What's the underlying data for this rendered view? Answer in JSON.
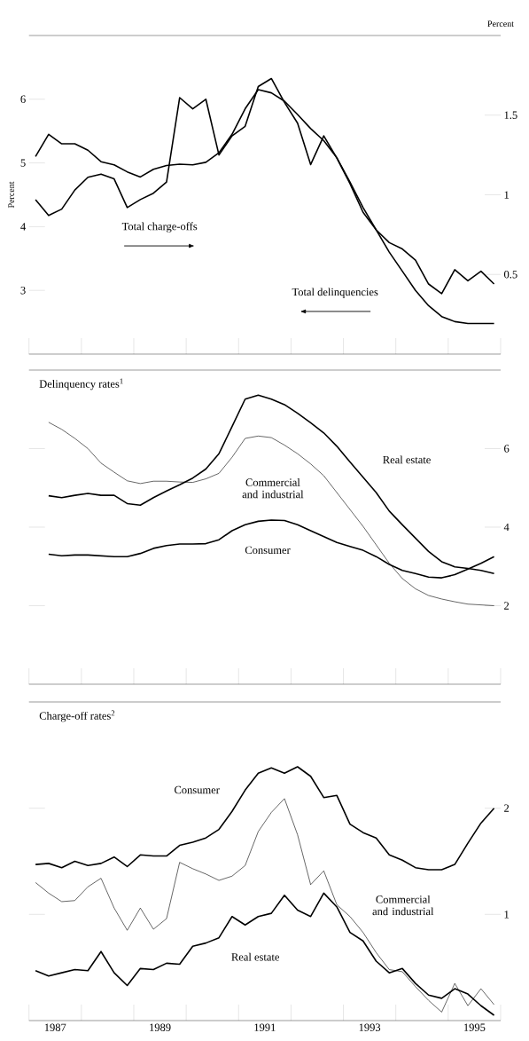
{
  "chart_data": [
    {
      "type": "line",
      "ylabel": "Percent",
      "y2label": "Percent",
      "categories": [
        null,
        null,
        null,
        null,
        null,
        null,
        null,
        null,
        null,
        null,
        null,
        null,
        null,
        null,
        null,
        null,
        null,
        null,
        null,
        null,
        null,
        null,
        null,
        null,
        null,
        null,
        null,
        null,
        null,
        null,
        null,
        null,
        null,
        null,
        null,
        null
      ],
      "ylim": [
        2,
        7
      ],
      "yticks": [
        3,
        4,
        5,
        6
      ],
      "y2lim": [
        0,
        2
      ],
      "y2ticks": [
        0.5,
        1,
        1.5
      ],
      "series": [
        {
          "name": "Total delinquencies",
          "color": "#000000",
          "values": [
            5.1,
            5.45,
            5.3,
            5.3,
            5.2,
            5.02,
            4.97,
            4.86,
            4.78,
            4.9,
            4.96,
            4.98,
            4.97,
            5.01,
            5.16,
            5.45,
            5.85,
            6.15,
            6.1,
            5.97,
            5.76,
            5.54,
            5.35,
            5.08,
            4.7,
            4.3,
            3.95,
            3.6,
            3.3,
            3.0,
            2.76,
            2.59,
            2.51,
            2.48,
            2.48,
            2.48
          ]
        },
        {
          "name": "Total charge-offs",
          "color": "#000000",
          "axis": "y2",
          "values": [
            0.97,
            0.87,
            0.91,
            1.03,
            1.11,
            1.13,
            1.1,
            0.92,
            0.97,
            1.01,
            1.08,
            1.61,
            1.54,
            1.6,
            1.25,
            1.37,
            1.43,
            1.68,
            1.73,
            1.58,
            1.45,
            1.19,
            1.37,
            1.23,
            1.07,
            0.89,
            0.78,
            0.7,
            0.66,
            0.59,
            0.44,
            0.38,
            0.53,
            0.46,
            0.52,
            0.44
          ]
        }
      ]
    },
    {
      "type": "line",
      "title": "Delinquency rates$^{1}$",
      "categories": [
        null,
        null,
        null,
        null,
        null,
        null,
        null,
        null,
        null,
        null,
        null,
        null,
        null,
        null,
        null,
        null,
        null,
        null,
        null,
        null,
        null,
        null,
        null,
        null,
        null,
        null,
        null,
        null,
        null,
        null,
        null,
        null,
        null,
        null,
        null,
        null
      ],
      "ylim": [
        0,
        8
      ],
      "yticks": [
        2,
        4,
        6
      ],
      "series": [
        {
          "name": "Real estate",
          "color": "#000000",
          "values": [
            null,
            4.8,
            4.75,
            4.81,
            4.86,
            4.81,
            4.81,
            4.6,
            4.56,
            4.75,
            4.92,
            5.08,
            5.25,
            5.48,
            5.87,
            6.56,
            7.26,
            7.36,
            7.26,
            7.12,
            6.9,
            6.66,
            6.4,
            6.06,
            5.66,
            5.27,
            4.88,
            4.41,
            4.06,
            3.72,
            3.38,
            3.12,
            2.99,
            2.95,
            2.9,
            2.82
          ]
        },
        {
          "name": "Commercial and industrial",
          "color": "#000000",
          "values": [
            null,
            6.67,
            6.49,
            6.26,
            6.0,
            5.63,
            5.4,
            5.18,
            5.11,
            5.17,
            5.17,
            5.15,
            5.14,
            5.23,
            5.37,
            5.78,
            6.26,
            6.32,
            6.28,
            6.09,
            5.87,
            5.61,
            5.31,
            4.88,
            4.45,
            4.02,
            3.55,
            3.08,
            2.69,
            2.43,
            2.26,
            2.17,
            2.1,
            2.04,
            2.02,
            2.0
          ]
        },
        {
          "name": "Consumer",
          "color": "#000000",
          "values": [
            null,
            3.31,
            3.27,
            3.29,
            3.29,
            3.27,
            3.25,
            3.25,
            3.33,
            3.46,
            3.53,
            3.57,
            3.57,
            3.58,
            3.68,
            3.91,
            4.06,
            4.15,
            4.18,
            4.17,
            4.06,
            3.91,
            3.76,
            3.61,
            3.51,
            3.41,
            3.25,
            3.05,
            2.9,
            2.82,
            2.73,
            2.71,
            2.79,
            2.93,
            3.08,
            3.25
          ]
        }
      ]
    },
    {
      "type": "line",
      "title": "Charge-off rates$^{2}$",
      "x": [
        1987.125,
        1987.375,
        1987.625,
        1987.875,
        1988.125,
        1988.375,
        1988.625,
        1988.875,
        1989.125,
        1989.375,
        1989.625,
        1989.875,
        1990.125,
        1990.375,
        1990.625,
        1990.875,
        1991.125,
        1991.375,
        1991.625,
        1991.875,
        1992.125,
        1992.375,
        1992.625,
        1992.875,
        1993.125,
        1993.375,
        1993.625,
        1993.875,
        1994.125,
        1994.375,
        1994.625,
        1994.875,
        1995.125,
        1995.375,
        1995.625,
        1995.875
      ],
      "xlim": [
        1987,
        1996
      ],
      "xticks": [
        {
          "value": 1987.5,
          "label": "1987"
        },
        {
          "value": 1989.5,
          "label": "1989"
        },
        {
          "value": 1991.5,
          "label": "1991"
        },
        {
          "value": 1993.5,
          "label": "1993"
        },
        {
          "value": 1995.5,
          "label": "1995"
        }
      ],
      "ylim": [
        0,
        3
      ],
      "yticks": [
        1,
        2
      ],
      "series": [
        {
          "name": "Consumer",
          "color": "#000000",
          "values": [
            1.47,
            1.48,
            1.44,
            1.5,
            1.46,
            1.48,
            1.54,
            1.45,
            1.56,
            1.55,
            1.55,
            1.65,
            1.68,
            1.72,
            1.8,
            1.97,
            2.17,
            2.33,
            2.38,
            2.33,
            2.39,
            2.3,
            2.1,
            2.12,
            1.85,
            1.77,
            1.72,
            1.56,
            1.51,
            1.44,
            1.42,
            1.42,
            1.47,
            1.67,
            1.86,
            2.0
          ]
        },
        {
          "name": "Commercial and industrial",
          "color": "#000000",
          "values": [
            1.3,
            1.2,
            1.12,
            1.13,
            1.26,
            1.34,
            1.06,
            0.85,
            1.06,
            0.86,
            0.96,
            1.49,
            1.43,
            1.38,
            1.32,
            1.36,
            1.46,
            1.78,
            1.96,
            2.09,
            1.75,
            1.28,
            1.41,
            1.09,
            0.98,
            0.83,
            0.64,
            0.48,
            0.46,
            0.32,
            0.19,
            0.08,
            0.35,
            0.14,
            0.3,
            0.15
          ]
        },
        {
          "name": "Real estate",
          "color": "#000000",
          "values": [
            0.47,
            0.42,
            0.45,
            0.48,
            0.47,
            0.65,
            0.45,
            0.33,
            0.49,
            0.48,
            0.54,
            0.53,
            0.7,
            0.73,
            0.78,
            0.98,
            0.9,
            0.98,
            1.01,
            1.18,
            1.04,
            0.98,
            1.2,
            1.07,
            0.83,
            0.75,
            0.56,
            0.45,
            0.49,
            0.35,
            0.24,
            0.21,
            0.3,
            0.25,
            0.14,
            0.05
          ]
        }
      ]
    }
  ]
}
